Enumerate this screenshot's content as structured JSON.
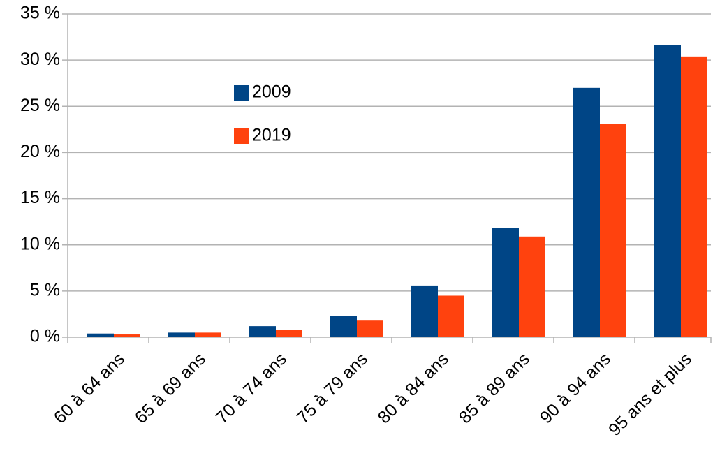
{
  "chart_data": {
    "type": "bar",
    "categories": [
      "60 à 64 ans",
      "65 à 69 ans",
      "70 à 74 ans",
      "75 à 79 ans",
      "80 à 84 ans",
      "85 à 89 ans",
      "90 à 94 ans",
      "95 ans et plus"
    ],
    "series": [
      {
        "name": "2009",
        "color": "#004586",
        "values": [
          0.4,
          0.5,
          1.2,
          2.3,
          5.6,
          11.8,
          27.0,
          31.6
        ]
      },
      {
        "name": "2019",
        "color": "#ff420e",
        "values": [
          0.3,
          0.5,
          0.8,
          1.8,
          4.5,
          10.9,
          23.1,
          30.4
        ]
      }
    ],
    "ylim": [
      0,
      35
    ],
    "yticks": [
      {
        "value": 0,
        "label": "0 %"
      },
      {
        "value": 5,
        "label": "5 %"
      },
      {
        "value": 10,
        "label": "10 %"
      },
      {
        "value": 15,
        "label": "15 %"
      },
      {
        "value": 20,
        "label": "20 %"
      },
      {
        "value": 25,
        "label": "25 %"
      },
      {
        "value": 30,
        "label": "30 %"
      },
      {
        "value": 35,
        "label": "35 %"
      }
    ],
    "grid": true,
    "legend": "upper left"
  }
}
